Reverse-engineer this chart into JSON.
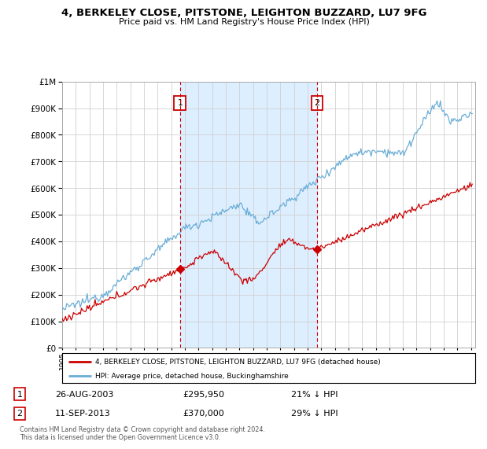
{
  "title": "4, BERKELEY CLOSE, PITSTONE, LEIGHTON BUZZARD, LU7 9FG",
  "subtitle": "Price paid vs. HM Land Registry's House Price Index (HPI)",
  "hpi_color": "#6baed6",
  "price_color": "#cc0000",
  "sale1_year_x": 2003.65,
  "sale1_price": 295950,
  "sale2_year_x": 2013.7,
  "sale2_price": 370000,
  "ylim": [
    0,
    1000000
  ],
  "xlim_start": 1995,
  "xlim_end": 2025.3,
  "yticks": [
    0,
    100000,
    200000,
    300000,
    400000,
    500000,
    600000,
    700000,
    800000,
    900000,
    1000000
  ],
  "legend_line1": "4, BERKELEY CLOSE, PITSTONE, LEIGHTON BUZZARD, LU7 9FG (detached house)",
  "legend_line2": "HPI: Average price, detached house, Buckinghamshire",
  "footer": "Contains HM Land Registry data © Crown copyright and database right 2024.\nThis data is licensed under the Open Government Licence v3.0.",
  "background_color": "#ffffff",
  "grid_color": "#d0d0d0",
  "shade_color": "#ddeeff"
}
